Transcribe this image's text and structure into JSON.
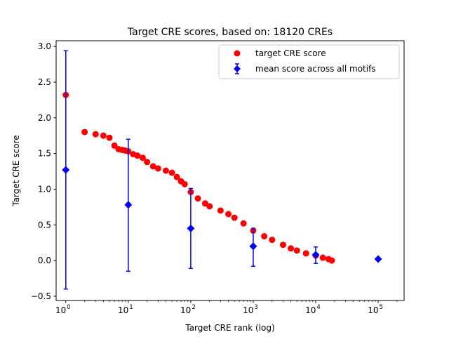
{
  "chart_data": {
    "type": "scatter",
    "title": "Target CRE scores, based on: 18120 CREs",
    "xlabel": "Target CRE rank (log)",
    "ylabel": "Target CRE score",
    "x_scale": "log",
    "xlim": [
      0.7,
      260000
    ],
    "ylim": [
      -0.56,
      3.08
    ],
    "grid": false,
    "legend_position": "top-right",
    "x_ticks": [
      {
        "value": 1,
        "base": "10",
        "exp": "0"
      },
      {
        "value": 10,
        "base": "10",
        "exp": "1"
      },
      {
        "value": 100,
        "base": "10",
        "exp": "2"
      },
      {
        "value": 1000,
        "base": "10",
        "exp": "3"
      },
      {
        "value": 10000,
        "base": "10",
        "exp": "4"
      },
      {
        "value": 100000,
        "base": "10",
        "exp": "5"
      }
    ],
    "y_ticks": [
      {
        "value": -0.5,
        "label": "−0.5"
      },
      {
        "value": 0.0,
        "label": "0.0"
      },
      {
        "value": 0.5,
        "label": "0.5"
      },
      {
        "value": 1.0,
        "label": "1.0"
      },
      {
        "value": 1.5,
        "label": "1.5"
      },
      {
        "value": 2.0,
        "label": "2.0"
      },
      {
        "value": 2.5,
        "label": "2.5"
      },
      {
        "value": 3.0,
        "label": "3.0"
      }
    ],
    "series": [
      {
        "name": "target CRE score",
        "color": "#ff0000",
        "marker": "circle",
        "points": [
          {
            "x": 1,
            "y": 2.32
          },
          {
            "x": 2,
            "y": 1.8
          },
          {
            "x": 3,
            "y": 1.77
          },
          {
            "x": 4,
            "y": 1.75
          },
          {
            "x": 5,
            "y": 1.72
          },
          {
            "x": 6,
            "y": 1.61
          },
          {
            "x": 7,
            "y": 1.56
          },
          {
            "x": 8,
            "y": 1.55
          },
          {
            "x": 9,
            "y": 1.54
          },
          {
            "x": 10,
            "y": 1.53
          },
          {
            "x": 12,
            "y": 1.49
          },
          {
            "x": 14,
            "y": 1.47
          },
          {
            "x": 17,
            "y": 1.44
          },
          {
            "x": 20,
            "y": 1.38
          },
          {
            "x": 25,
            "y": 1.32
          },
          {
            "x": 30,
            "y": 1.29
          },
          {
            "x": 40,
            "y": 1.26
          },
          {
            "x": 50,
            "y": 1.23
          },
          {
            "x": 60,
            "y": 1.17
          },
          {
            "x": 70,
            "y": 1.11
          },
          {
            "x": 80,
            "y": 1.07
          },
          {
            "x": 100,
            "y": 0.96
          },
          {
            "x": 130,
            "y": 0.87
          },
          {
            "x": 170,
            "y": 0.8
          },
          {
            "x": 200,
            "y": 0.76
          },
          {
            "x": 300,
            "y": 0.7
          },
          {
            "x": 400,
            "y": 0.65
          },
          {
            "x": 500,
            "y": 0.6
          },
          {
            "x": 700,
            "y": 0.52
          },
          {
            "x": 1000,
            "y": 0.42
          },
          {
            "x": 1500,
            "y": 0.34
          },
          {
            "x": 2000,
            "y": 0.29
          },
          {
            "x": 3000,
            "y": 0.22
          },
          {
            "x": 4000,
            "y": 0.17
          },
          {
            "x": 5000,
            "y": 0.14
          },
          {
            "x": 7000,
            "y": 0.1
          },
          {
            "x": 10000,
            "y": 0.07
          },
          {
            "x": 13000,
            "y": 0.04
          },
          {
            "x": 16000,
            "y": 0.02
          },
          {
            "x": 18120,
            "y": 0.0
          }
        ]
      },
      {
        "name": "mean score across all motifs",
        "color": "#0000ff",
        "marker": "diamond",
        "points": [
          {
            "x": 1,
            "y": 1.27,
            "err_low": -0.4,
            "err_high": 2.94
          },
          {
            "x": 10,
            "y": 0.78,
            "err_low": -0.15,
            "err_high": 1.7
          },
          {
            "x": 100,
            "y": 0.45,
            "err_low": -0.11,
            "err_high": 1.01
          },
          {
            "x": 1000,
            "y": 0.2,
            "err_low": -0.08,
            "err_high": 0.45
          },
          {
            "x": 10000,
            "y": 0.08,
            "err_low": -0.04,
            "err_high": 0.19
          },
          {
            "x": 100000,
            "y": 0.02
          }
        ]
      }
    ]
  }
}
